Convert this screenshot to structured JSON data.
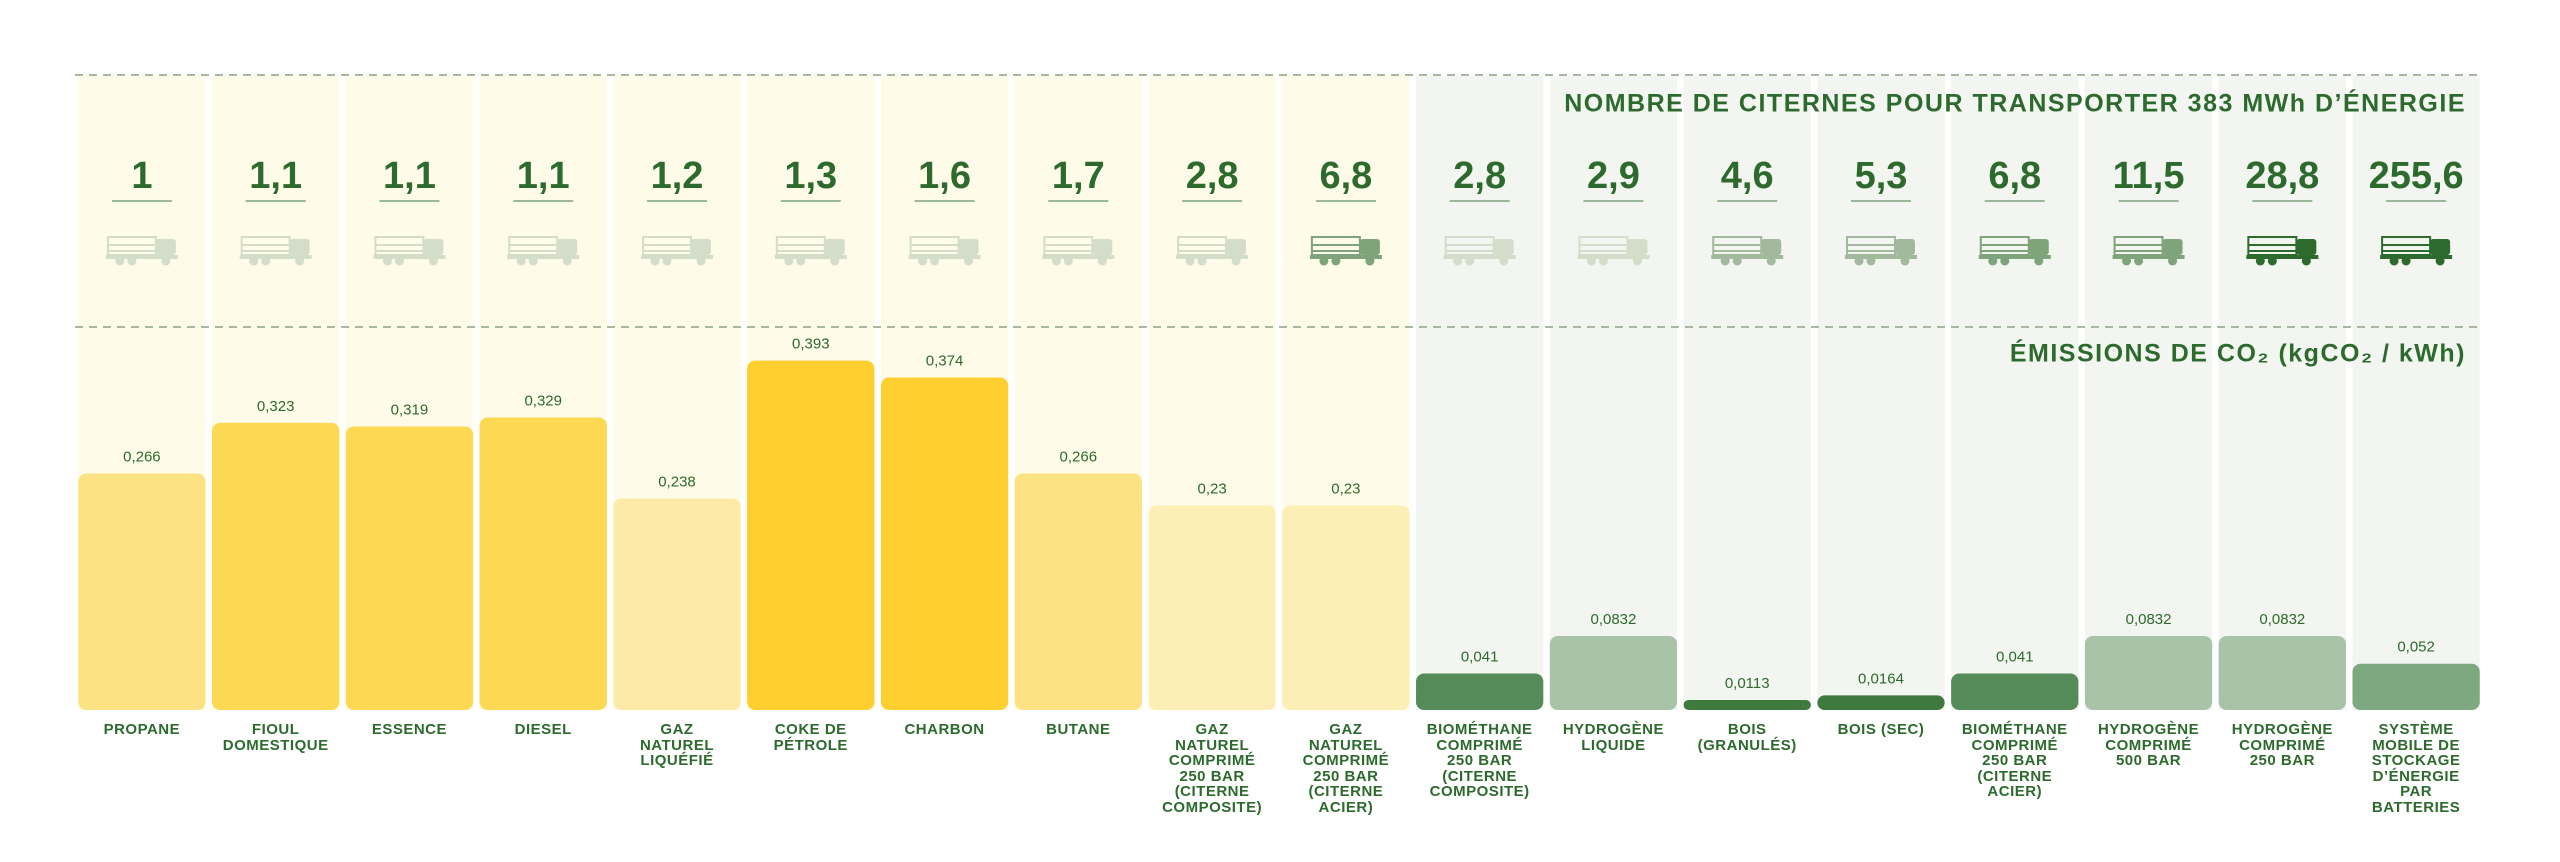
{
  "chart_data": [
    {
      "type": "bar",
      "title": "ÉMISSIONS DE CO₂ (kgCO₂ / kWh)",
      "categories": [
        "PROPANE",
        "FIOUL DOMESTIQUE",
        "ESSENCE",
        "DIESEL",
        "GAZ NATUREL LIQUÉFIÉ",
        "COKE DE PÉTROLE",
        "CHARBON",
        "BUTANE",
        "GAZ NATUREL COMPRIMÉ 250 BAR (CITERNE COMPOSITE)",
        "GAZ NATUREL COMPRIMÉ 250 BAR (CITERNE ACIER)",
        "BIOMÉTHANE COMPRIMÉ 250 BAR (CITERNE COMPOSITE)",
        "HYDROGÈNE LIQUIDE",
        "BOIS (GRANULÉS)",
        "BOIS (SEC)",
        "BIOMÉTHANE COMPRIMÉ 250 BAR (CITERNE ACIER)",
        "HYDROGÈNE COMPRIMÉ 500 BAR",
        "HYDROGÈNE COMPRIMÉ 250 BAR",
        "SYSTÈME MOBILE DE STOCKAGE D’ÉNERGIE PAR BATTERIES"
      ],
      "values": [
        0.266,
        0.323,
        0.319,
        0.329,
        0.238,
        0.393,
        0.374,
        0.266,
        0.23,
        0.23,
        0.041,
        0.0832,
        0.0113,
        0.0164,
        0.041,
        0.0832,
        0.0832,
        0.052
      ],
      "value_labels": [
        "0,266",
        "0,323",
        "0,319",
        "0,329",
        "0,238",
        "0,393",
        "0,374",
        "0,266",
        "0,23",
        "0,23",
        "0,041",
        "0,0832",
        "0,0113",
        "0,0164",
        "0,041",
        "0,0832",
        "0,0832",
        "0,052"
      ],
      "colors": [
        "#fde283",
        "#fdd853",
        "#fdd853",
        "#fdd853",
        "#fdeaa8",
        "#fecf2e",
        "#fecf2e",
        "#fde283",
        "#fdeeb5",
        "#fdeeb5",
        "#558b58",
        "#a8c3a8",
        "#3e7a3e",
        "#3e7a3e",
        "#558b58",
        "#a8c3a8",
        "#a8c3a8",
        "#7ea87f"
      ],
      "ylim": [
        0,
        0.45
      ]
    },
    {
      "type": "icon",
      "title": "NOMBRE DE CITERNES POUR TRANSPORTER 383 MWh D’ÉNERGIE",
      "values": [
        1,
        1.1,
        1.1,
        1.1,
        1.2,
        1.3,
        1.6,
        1.7,
        2.8,
        6.8,
        2.8,
        2.9,
        4.6,
        5.3,
        6.8,
        11.5,
        28.8,
        255.6
      ],
      "value_labels": [
        "1",
        "1,1",
        "1,1",
        "1,1",
        "1,2",
        "1,3",
        "1,6",
        "1,7",
        "2,8",
        "6,8",
        "2,8",
        "2,9",
        "4,6",
        "5,3",
        "6,8",
        "11,5",
        "28,8",
        "255,6"
      ],
      "colors": [
        "#d4ddca",
        "#d4ddca",
        "#d4ddca",
        "#d4ddca",
        "#d4ddca",
        "#d4ddca",
        "#d4ddca",
        "#d4ddca",
        "#d4ddca",
        "#7fa37a",
        "#d4ddca",
        "#d4ddca",
        "#a3b99e",
        "#a3b99e",
        "#7fa37a",
        "#7fa37a",
        "#2d6a2d",
        "#2d6a2d"
      ]
    }
  ]
}
